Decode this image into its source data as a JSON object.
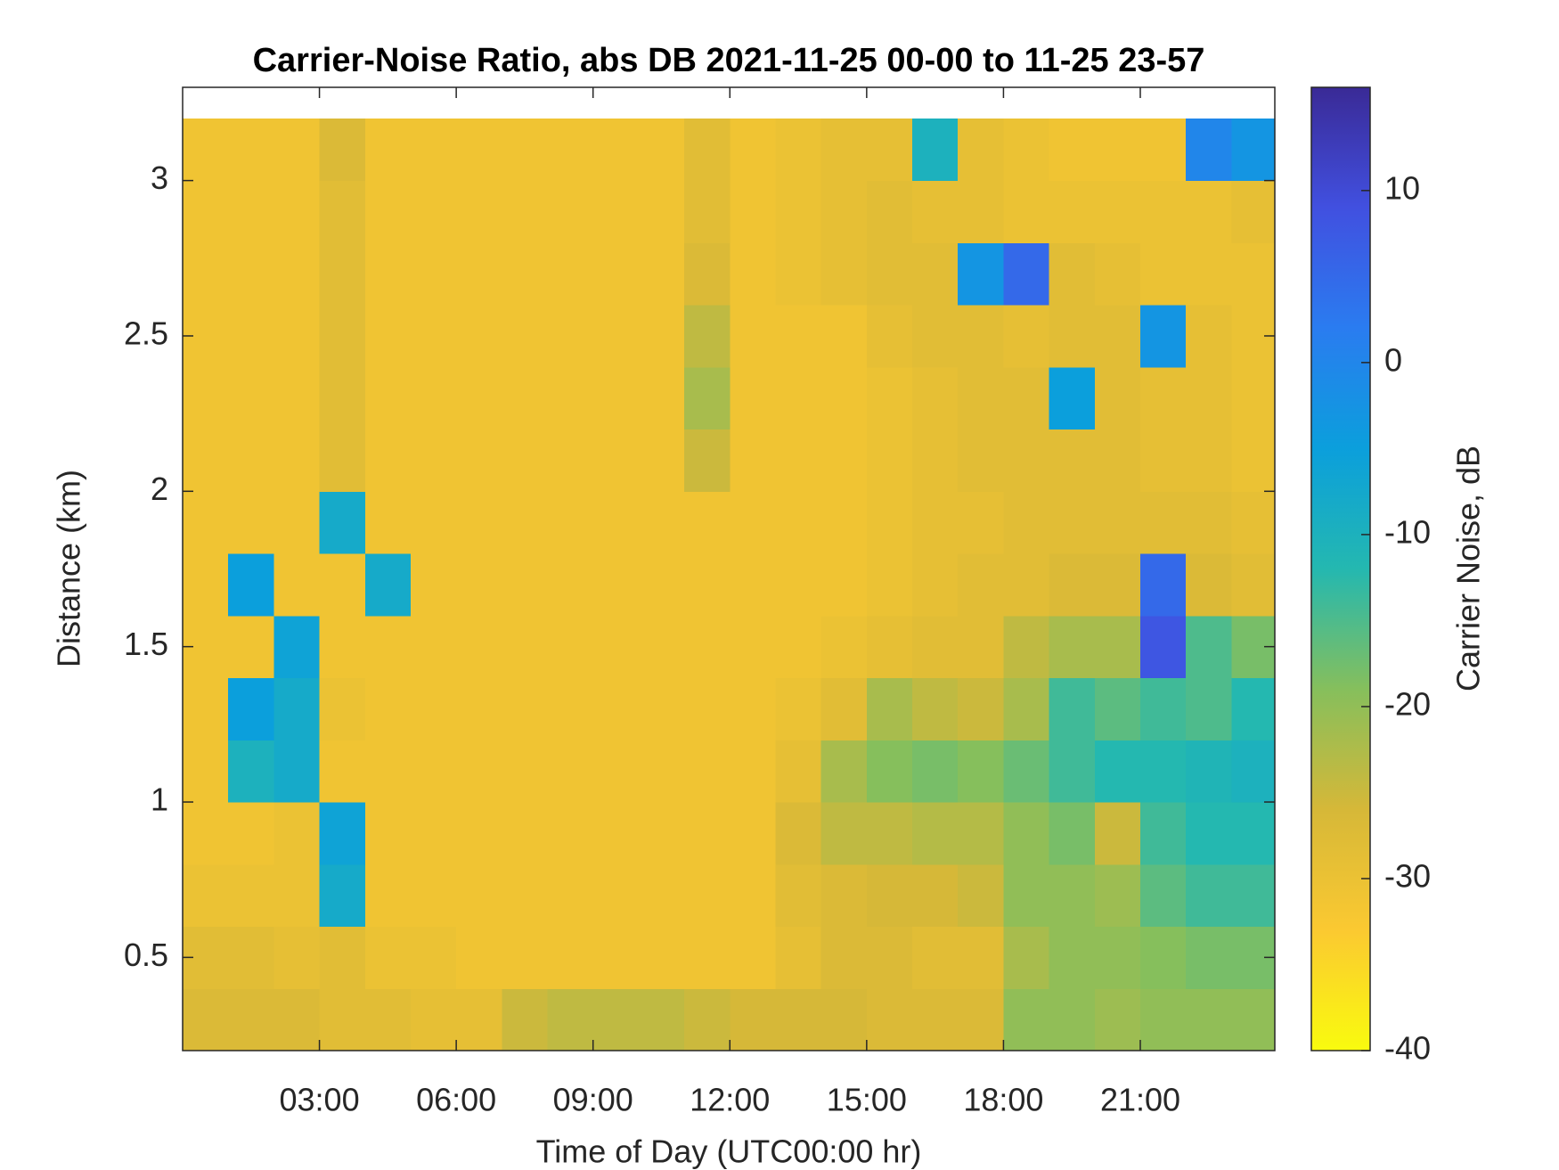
{
  "chart_data": {
    "type": "heatmap",
    "title": "Carrier-Noise Ratio, abs DB 2021-11-25 00-00 to 11-25 23-57",
    "x_label": "Time of Day (UTC00:00 hr)",
    "y_label": "Distance (km)",
    "colorbar_label": "Carrier Noise, dB",
    "xlim": [
      0,
      23.95
    ],
    "ylim": [
      0.2,
      3.3
    ],
    "xticks": [
      {
        "value": 3,
        "label": "03:00"
      },
      {
        "value": 6,
        "label": "06:00"
      },
      {
        "value": 9,
        "label": "09:00"
      },
      {
        "value": 12,
        "label": "12:00"
      },
      {
        "value": 15,
        "label": "15:00"
      },
      {
        "value": 18,
        "label": "18:00"
      },
      {
        "value": 21,
        "label": "21:00"
      }
    ],
    "yticks": [
      0.5,
      1,
      1.5,
      2,
      2.5,
      3
    ],
    "clim": [
      -40,
      16
    ],
    "cticks": [
      -40,
      -30,
      -20,
      -10,
      0,
      10
    ],
    "colormap": [
      "#f9fb0e",
      "#fbc931",
      "#d6b838",
      "#86bf5c",
      "#24b8b0",
      "#0b9fdc",
      "#2a7cf0",
      "#4150e0",
      "#3a2a96"
    ],
    "x": [
      0.5,
      1.5,
      2.5,
      3.5,
      4.5,
      5.5,
      6.5,
      7.5,
      8.5,
      9.5,
      10.5,
      11.5,
      12.5,
      13.5,
      14.5,
      15.5,
      16.5,
      17.5,
      18.5,
      19.5,
      20.5,
      21.5,
      22.5,
      23.5
    ],
    "y": [
      0.3,
      0.5,
      0.7,
      0.9,
      1.1,
      1.3,
      1.5,
      1.7,
      1.9,
      2.1,
      2.3,
      2.5,
      2.7,
      2.9,
      3.1
    ],
    "z": [
      [
        -27,
        -27,
        -27,
        -28,
        -28,
        -29,
        -29,
        -25,
        -24,
        -24,
        -24,
        -25,
        -26,
        -26,
        -26,
        -27,
        -27,
        -27,
        -20,
        -20,
        -21,
        -20,
        -20,
        -20
      ],
      [
        -28,
        -28,
        -29,
        -28,
        -30,
        -30,
        -31,
        -31,
        -31,
        -31,
        -31,
        -31,
        -31,
        -29,
        -27,
        -27,
        -28,
        -28,
        -22,
        -20,
        -20,
        -19,
        -18,
        -18
      ],
      [
        -30,
        -30,
        -30,
        -8,
        -31,
        -31,
        -31,
        -31,
        -31,
        -31,
        -31,
        -31,
        -31,
        -28,
        -27,
        -26,
        -26,
        -25,
        -20,
        -20,
        -21,
        -16,
        -14,
        -14
      ],
      [
        -31,
        -31,
        -30,
        -6,
        -31,
        -31,
        -31,
        -31,
        -31,
        -31,
        -31,
        -31,
        -31,
        -27,
        -24,
        -24,
        -23,
        -23,
        -20,
        -18,
        -25,
        -14,
        -12,
        -12
      ],
      [
        -31,
        -10,
        -8,
        -31,
        -31,
        -31,
        -31,
        -31,
        -31,
        -31,
        -31,
        -31,
        -31,
        -29,
        -22,
        -19,
        -18,
        -19,
        -17,
        -14,
        -12,
        -12,
        -11,
        -10
      ],
      [
        -31,
        -5,
        -8,
        -30,
        -31,
        -31,
        -31,
        -31,
        -31,
        -31,
        -31,
        -31,
        -31,
        -30,
        -28,
        -22,
        -24,
        -25,
        -22,
        -14,
        -16,
        -14,
        -15,
        -12
      ],
      [
        -31,
        -31,
        -6,
        -31,
        -31,
        -31,
        -31,
        -31,
        -31,
        -31,
        -31,
        -31,
        -31,
        -31,
        -30,
        -29,
        -28,
        -28,
        -24,
        -22,
        -22,
        8,
        -15,
        -18
      ],
      [
        -31,
        -5,
        -31,
        -31,
        -8,
        -31,
        -31,
        -31,
        -31,
        -31,
        -31,
        -31,
        -31,
        -31,
        -31,
        -30,
        -29,
        -28,
        -28,
        -27,
        -27,
        5,
        -27,
        -28
      ],
      [
        -31,
        -31,
        -31,
        -8,
        -31,
        -31,
        -31,
        -31,
        -31,
        -31,
        -31,
        -31,
        -31,
        -31,
        -31,
        -30,
        -29,
        -29,
        -28,
        -28,
        -28,
        -28,
        -28,
        -29
      ],
      [
        -31,
        -31,
        -31,
        -28,
        -31,
        -31,
        -31,
        -31,
        -31,
        -31,
        -31,
        -25,
        -31,
        -31,
        -31,
        -30,
        -29,
        -28,
        -28,
        -28,
        -28,
        -29,
        -29,
        -30
      ],
      [
        -31,
        -31,
        -31,
        -28,
        -31,
        -31,
        -31,
        -31,
        -31,
        -31,
        -31,
        -22,
        -31,
        -31,
        -31,
        -30,
        -29,
        -28,
        -28,
        -5,
        -28,
        -29,
        -29,
        -30
      ],
      [
        -31,
        -31,
        -31,
        -28,
        -31,
        -31,
        -31,
        -31,
        -31,
        -31,
        -31,
        -24,
        -31,
        -31,
        -31,
        -29,
        -28,
        -28,
        -29,
        -28,
        -28,
        -3,
        -29,
        -30
      ],
      [
        -31,
        -31,
        -31,
        -28,
        -31,
        -31,
        -31,
        -31,
        -31,
        -31,
        -31,
        -27,
        -31,
        -30,
        -29,
        -28,
        -28,
        -3,
        5,
        -28,
        -29,
        -30,
        -30,
        -30
      ],
      [
        -31,
        -31,
        -31,
        -28,
        -31,
        -31,
        -31,
        -31,
        -31,
        -31,
        -31,
        -28,
        -31,
        -30,
        -29,
        -28,
        -29,
        -29,
        -30,
        -30,
        -30,
        -30,
        -30,
        -29
      ],
      [
        -31,
        -31,
        -31,
        -27,
        -31,
        -31,
        -31,
        -31,
        -31,
        -31,
        -31,
        -28,
        -31,
        -30,
        -29,
        -29,
        -10,
        -29,
        -30,
        -31,
        -31,
        -31,
        0,
        -3
      ]
    ]
  }
}
